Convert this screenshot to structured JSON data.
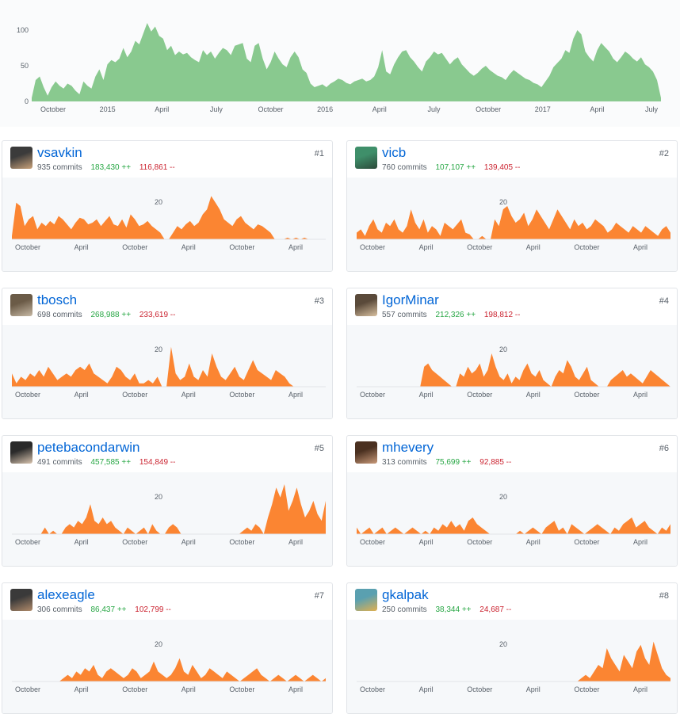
{
  "main_chart": {
    "y_ticks": [
      "100",
      "50",
      "0"
    ],
    "x_ticks": [
      "October",
      "2015",
      "April",
      "July",
      "October",
      "2016",
      "April",
      "July",
      "October",
      "2017",
      "April",
      "July"
    ],
    "color": "#89c98f",
    "chart_data": {
      "type": "area",
      "ylim": [
        0,
        120
      ],
      "series": [
        {
          "values": [
            5,
            30,
            35,
            20,
            8,
            20,
            28,
            22,
            18,
            25,
            22,
            15,
            10,
            28,
            22,
            18,
            35,
            45,
            30,
            52,
            58,
            55,
            60,
            75,
            62,
            70,
            85,
            80,
            95,
            110,
            98,
            105,
            92,
            88,
            72,
            78,
            65,
            70,
            66,
            68,
            62,
            58,
            55,
            72,
            65,
            70,
            60,
            68,
            75,
            72,
            65,
            78,
            80,
            82,
            60,
            55,
            78,
            82,
            60,
            45,
            55,
            70,
            60,
            52,
            48,
            62,
            70,
            62,
            45,
            40,
            25,
            20,
            22,
            24,
            20,
            25,
            28,
            32,
            30,
            26,
            24,
            28,
            30,
            32,
            28,
            30,
            35,
            48,
            72,
            42,
            38,
            52,
            62,
            70,
            72,
            62,
            56,
            48,
            42,
            56,
            62,
            70,
            66,
            68,
            60,
            52,
            58,
            62,
            52,
            46,
            40,
            36,
            40,
            46,
            50,
            44,
            40,
            36,
            34,
            30,
            38,
            44,
            40,
            36,
            32,
            30,
            26,
            24,
            20,
            28,
            36,
            48,
            54,
            60,
            72,
            68,
            88,
            100,
            94,
            70,
            62,
            56,
            72,
            82,
            76,
            70,
            60,
            55,
            62,
            70,
            66,
            60,
            56,
            62,
            52,
            48,
            42,
            30,
            5
          ]
        }
      ]
    }
  },
  "contributors": [
    {
      "login": "vsavkin",
      "commits": "935 commits",
      "additions": "183,430 ++",
      "deletions": "116,861 --",
      "rank": "#1",
      "y_tick": "20",
      "x_ticks": [
        "October",
        "April",
        "October",
        "April",
        "October",
        "April"
      ],
      "color": "#fb8532",
      "chart_data": {
        "type": "area",
        "ylim": [
          0,
          40
        ],
        "series": [
          {
            "values": [
              2,
              22,
              20,
              8,
              12,
              14,
              6,
              10,
              8,
              11,
              9,
              14,
              12,
              9,
              6,
              10,
              13,
              12,
              9,
              10,
              12,
              8,
              11,
              14,
              9,
              8,
              12,
              7,
              15,
              12,
              8,
              9,
              11,
              8,
              6,
              4,
              0,
              0,
              4,
              8,
              6,
              9,
              11,
              8,
              10,
              15,
              18,
              26,
              22,
              18,
              12,
              10,
              8,
              12,
              14,
              10,
              8,
              6,
              9,
              8,
              6,
              4,
              0,
              0,
              0,
              1,
              0,
              1,
              0,
              1,
              0,
              0,
              0,
              0,
              0
            ]
          }
        ]
      }
    },
    {
      "login": "vicb",
      "commits": "760 commits",
      "additions": "107,107 ++",
      "deletions": "139,405 --",
      "rank": "#2",
      "y_tick": "20",
      "x_ticks": [
        "October",
        "April",
        "October",
        "April",
        "October",
        "April"
      ],
      "color": "#fb8532",
      "chart_data": {
        "type": "area",
        "ylim": [
          0,
          40
        ],
        "series": [
          {
            "values": [
              4,
              6,
              2,
              8,
              12,
              6,
              4,
              10,
              8,
              12,
              6,
              4,
              8,
              18,
              10,
              6,
              12,
              4,
              8,
              6,
              2,
              10,
              8,
              6,
              9,
              12,
              4,
              3,
              0,
              0,
              2,
              0,
              0,
              12,
              8,
              18,
              20,
              14,
              10,
              12,
              16,
              8,
              12,
              18,
              14,
              10,
              6,
              12,
              18,
              14,
              10,
              6,
              12,
              8,
              10,
              6,
              8,
              12,
              10,
              8,
              4,
              6,
              10,
              8,
              6,
              4,
              8,
              6,
              4,
              8,
              6,
              4,
              2,
              6,
              8,
              4
            ]
          }
        ]
      }
    },
    {
      "login": "tbosch",
      "commits": "698 commits",
      "additions": "268,988 ++",
      "deletions": "233,619 --",
      "rank": "#3",
      "y_tick": "20",
      "x_ticks": [
        "October",
        "April",
        "October",
        "April",
        "October",
        "April"
      ],
      "color": "#fb8532",
      "chart_data": {
        "type": "area",
        "ylim": [
          0,
          40
        ],
        "series": [
          {
            "values": [
              8,
              2,
              6,
              4,
              8,
              6,
              10,
              6,
              12,
              8,
              4,
              6,
              8,
              6,
              10,
              12,
              10,
              14,
              8,
              6,
              4,
              2,
              6,
              12,
              10,
              6,
              4,
              8,
              2,
              2,
              4,
              2,
              6,
              0,
              0,
              24,
              8,
              4,
              6,
              14,
              6,
              4,
              10,
              6,
              20,
              12,
              6,
              4,
              8,
              12,
              6,
              4,
              10,
              16,
              10,
              8,
              6,
              4,
              10,
              8,
              6,
              2,
              0,
              0,
              0,
              0,
              0,
              0,
              0,
              0
            ]
          }
        ]
      }
    },
    {
      "login": "IgorMinar",
      "commits": "557 commits",
      "additions": "212,326 ++",
      "deletions": "198,812 --",
      "rank": "#4",
      "y_tick": "20",
      "x_ticks": [
        "October",
        "April",
        "October",
        "April",
        "October",
        "April"
      ],
      "color": "#fb8532",
      "chart_data": {
        "type": "area",
        "ylim": [
          0,
          40
        ],
        "series": [
          {
            "values": [
              0,
              0,
              0,
              0,
              0,
              0,
              0,
              0,
              0,
              0,
              0,
              0,
              0,
              0,
              0,
              0,
              0,
              12,
              14,
              10,
              8,
              6,
              4,
              2,
              0,
              0,
              8,
              6,
              12,
              8,
              10,
              14,
              6,
              10,
              20,
              12,
              6,
              4,
              8,
              2,
              6,
              4,
              10,
              14,
              8,
              6,
              10,
              4,
              2,
              0,
              6,
              10,
              8,
              16,
              12,
              6,
              4,
              8,
              12,
              4,
              2,
              0,
              0,
              0,
              4,
              6,
              8,
              10,
              6,
              8,
              6,
              4,
              2,
              6,
              10,
              8,
              6,
              4,
              2,
              0
            ]
          }
        ]
      }
    },
    {
      "login": "petebacondarwin",
      "commits": "491 commits",
      "additions": "457,585 ++",
      "deletions": "154,849 --",
      "rank": "#5",
      "y_tick": "20",
      "x_ticks": [
        "October",
        "April",
        "October",
        "April",
        "October",
        "April"
      ],
      "color": "#fb8532",
      "chart_data": {
        "type": "area",
        "ylim": [
          0,
          40
        ],
        "series": [
          {
            "values": [
              0,
              0,
              0,
              0,
              0,
              0,
              0,
              0,
              4,
              0,
              2,
              0,
              0,
              4,
              6,
              4,
              8,
              6,
              10,
              18,
              8,
              6,
              10,
              6,
              8,
              4,
              2,
              0,
              4,
              2,
              0,
              2,
              4,
              0,
              6,
              2,
              0,
              0,
              4,
              6,
              4,
              0,
              0,
              0,
              0,
              0,
              0,
              0,
              0,
              0,
              0,
              0,
              0,
              0,
              0,
              0,
              2,
              4,
              2,
              6,
              4,
              0,
              10,
              18,
              28,
              22,
              30,
              14,
              20,
              28,
              18,
              10,
              14,
              20,
              12,
              8,
              20
            ]
          }
        ]
      }
    },
    {
      "login": "mhevery",
      "commits": "313 commits",
      "additions": "75,699 ++",
      "deletions": "92,885 --",
      "rank": "#6",
      "y_tick": "20",
      "x_ticks": [
        "October",
        "April",
        "October",
        "April",
        "October",
        "April"
      ],
      "color": "#fb8532",
      "chart_data": {
        "type": "area",
        "ylim": [
          0,
          40
        ],
        "series": [
          {
            "values": [
              4,
              0,
              2,
              4,
              0,
              2,
              4,
              0,
              2,
              4,
              2,
              0,
              2,
              4,
              2,
              0,
              2,
              0,
              4,
              2,
              6,
              4,
              8,
              4,
              6,
              2,
              8,
              10,
              6,
              4,
              2,
              0,
              0,
              0,
              0,
              0,
              0,
              0,
              2,
              0,
              2,
              4,
              2,
              0,
              4,
              6,
              8,
              2,
              4,
              0,
              6,
              4,
              2,
              0,
              2,
              4,
              6,
              4,
              2,
              0,
              4,
              2,
              6,
              8,
              10,
              4,
              6,
              8,
              4,
              2,
              0,
              4,
              2,
              6
            ]
          }
        ]
      }
    },
    {
      "login": "alexeagle",
      "commits": "306 commits",
      "additions": "86,437 ++",
      "deletions": "102,799 --",
      "rank": "#7",
      "y_tick": "20",
      "x_ticks": [
        "October",
        "April",
        "October",
        "April",
        "October",
        "April"
      ],
      "color": "#fb8532",
      "chart_data": {
        "type": "area",
        "ylim": [
          0,
          40
        ],
        "series": [
          {
            "values": [
              0,
              0,
              0,
              0,
              0,
              0,
              0,
              0,
              0,
              0,
              0,
              0,
              2,
              4,
              2,
              6,
              4,
              8,
              6,
              10,
              4,
              2,
              6,
              8,
              6,
              4,
              2,
              4,
              8,
              6,
              2,
              4,
              6,
              12,
              6,
              4,
              2,
              4,
              8,
              14,
              6,
              4,
              10,
              6,
              2,
              4,
              8,
              6,
              4,
              2,
              6,
              4,
              2,
              0,
              2,
              4,
              6,
              8,
              4,
              2,
              0,
              2,
              4,
              2,
              0,
              2,
              4,
              2,
              0,
              2,
              4,
              2,
              0,
              2
            ]
          }
        ]
      }
    },
    {
      "login": "gkalpak",
      "commits": "250 commits",
      "additions": "38,344 ++",
      "deletions": "24,687 --",
      "rank": "#8",
      "y_tick": "20",
      "x_ticks": [
        "October",
        "April",
        "October",
        "April",
        "October",
        "April"
      ],
      "color": "#fb8532",
      "chart_data": {
        "type": "area",
        "ylim": [
          0,
          40
        ],
        "series": [
          {
            "values": [
              0,
              0,
              0,
              0,
              0,
              0,
              0,
              0,
              0,
              0,
              0,
              0,
              0,
              0,
              0,
              0,
              0,
              0,
              0,
              0,
              0,
              0,
              0,
              0,
              0,
              0,
              0,
              0,
              0,
              0,
              0,
              0,
              0,
              0,
              0,
              0,
              0,
              0,
              0,
              0,
              0,
              0,
              0,
              0,
              0,
              0,
              0,
              0,
              0,
              0,
              0,
              0,
              0,
              2,
              4,
              2,
              6,
              10,
              8,
              20,
              14,
              10,
              6,
              16,
              12,
              8,
              18,
              22,
              14,
              10,
              24,
              16,
              8,
              4,
              2
            ]
          }
        ]
      }
    }
  ]
}
